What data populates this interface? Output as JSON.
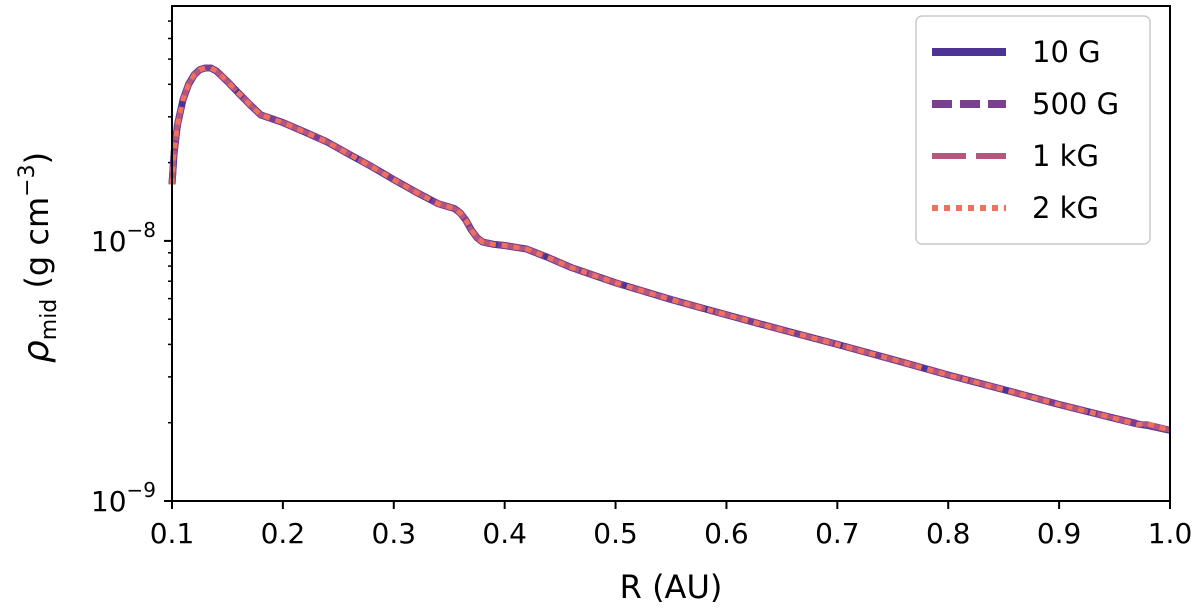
{
  "chart_data": {
    "type": "line",
    "xlabel": "R (AU)",
    "ylabel": {
      "symbol": "ρ",
      "subscript": "mid",
      "units_prefix": " (g cm",
      "units_exp": "−3",
      "units_suffix": ")"
    },
    "xlim": [
      0.1,
      1.0
    ],
    "ylim": [
      1e-09,
      8e-08
    ],
    "yscale": "log",
    "x_ticks": [
      {
        "value": 0.1,
        "label": "0.1"
      },
      {
        "value": 0.2,
        "label": "0.2"
      },
      {
        "value": 0.3,
        "label": "0.3"
      },
      {
        "value": 0.4,
        "label": "0.4"
      },
      {
        "value": 0.5,
        "label": "0.5"
      },
      {
        "value": 0.6,
        "label": "0.6"
      },
      {
        "value": 0.7,
        "label": "0.7"
      },
      {
        "value": 0.8,
        "label": "0.8"
      },
      {
        "value": 0.9,
        "label": "0.9"
      },
      {
        "value": 1.0,
        "label": "1.0"
      }
    ],
    "y_ticks": [
      {
        "value": 1e-09,
        "base": "10",
        "exp": "−9"
      },
      {
        "value": 1e-08,
        "base": "10",
        "exp": "−8"
      }
    ],
    "grid": false,
    "legend_position": "top-right",
    "x": [
      0.1,
      0.102,
      0.105,
      0.11,
      0.115,
      0.12,
      0.125,
      0.13,
      0.135,
      0.14,
      0.15,
      0.16,
      0.17,
      0.18,
      0.19,
      0.2,
      0.22,
      0.24,
      0.26,
      0.28,
      0.3,
      0.32,
      0.34,
      0.355,
      0.36,
      0.365,
      0.37,
      0.375,
      0.38,
      0.39,
      0.4,
      0.42,
      0.44,
      0.46,
      0.5,
      0.55,
      0.6,
      0.65,
      0.7,
      0.75,
      0.8,
      0.85,
      0.9,
      0.95,
      0.97,
      0.98,
      1.0
    ],
    "series": [
      {
        "name": "10 G",
        "color": "#4b3494",
        "style": "solid",
        "values": [
          1.65e-08,
          2.2e-08,
          2.8e-08,
          3.5e-08,
          4e-08,
          4.35e-08,
          4.55e-08,
          4.62e-08,
          4.62e-08,
          4.5e-08,
          4.1e-08,
          3.7e-08,
          3.35e-08,
          3.05e-08,
          2.95e-08,
          2.85e-08,
          2.62e-08,
          2.4e-08,
          2.15e-08,
          1.93e-08,
          1.72e-08,
          1.54e-08,
          1.39e-08,
          1.33e-08,
          1.28e-08,
          1.2e-08,
          1.1e-08,
          1.03e-08,
          9.9e-09,
          9.7e-09,
          9.6e-09,
          9.3e-09,
          8.6e-09,
          7.9e-09,
          6.9e-09,
          5.95e-09,
          5.2e-09,
          4.55e-09,
          4e-09,
          3.5e-09,
          3.05e-09,
          2.68e-09,
          2.35e-09,
          2.08e-09,
          1.98e-09,
          1.95e-09,
          1.87e-09
        ]
      },
      {
        "name": "500 G",
        "color": "#7b3f8f",
        "style": "dashed",
        "values": [
          1.65e-08,
          2.2e-08,
          2.8e-08,
          3.5e-08,
          4e-08,
          4.35e-08,
          4.55e-08,
          4.62e-08,
          4.62e-08,
          4.5e-08,
          4.1e-08,
          3.7e-08,
          3.35e-08,
          3.05e-08,
          2.95e-08,
          2.85e-08,
          2.62e-08,
          2.4e-08,
          2.15e-08,
          1.93e-08,
          1.72e-08,
          1.54e-08,
          1.39e-08,
          1.33e-08,
          1.28e-08,
          1.2e-08,
          1.1e-08,
          1.03e-08,
          9.9e-09,
          9.7e-09,
          9.6e-09,
          9.3e-09,
          8.6e-09,
          7.9e-09,
          6.9e-09,
          5.95e-09,
          5.2e-09,
          4.55e-09,
          4e-09,
          3.5e-09,
          3.05e-09,
          2.68e-09,
          2.35e-09,
          2.08e-09,
          1.99e-09,
          1.96e-09,
          1.87e-09
        ]
      },
      {
        "name": "1 kG",
        "color": "#b5567e",
        "style": "longdash",
        "values": [
          1.65e-08,
          2.2e-08,
          2.8e-08,
          3.5e-08,
          4e-08,
          4.35e-08,
          4.55e-08,
          4.62e-08,
          4.62e-08,
          4.5e-08,
          4.1e-08,
          3.7e-08,
          3.35e-08,
          3.05e-08,
          2.95e-08,
          2.85e-08,
          2.62e-08,
          2.4e-08,
          2.15e-08,
          1.93e-08,
          1.72e-08,
          1.54e-08,
          1.39e-08,
          1.33e-08,
          1.28e-08,
          1.2e-08,
          1.1e-08,
          1.03e-08,
          9.9e-09,
          9.7e-09,
          9.6e-09,
          9.3e-09,
          8.6e-09,
          7.9e-09,
          6.9e-09,
          5.95e-09,
          5.2e-09,
          4.55e-09,
          4e-09,
          3.5e-09,
          3.05e-09,
          2.68e-09,
          2.35e-09,
          2.08e-09,
          1.98e-09,
          1.97e-09,
          1.87e-09
        ]
      },
      {
        "name": "2 kG",
        "color": "#f0705f",
        "style": "dotted",
        "values": [
          1.65e-08,
          2.2e-08,
          2.8e-08,
          3.5e-08,
          4e-08,
          4.35e-08,
          4.55e-08,
          4.62e-08,
          4.62e-08,
          4.5e-08,
          4.1e-08,
          3.7e-08,
          3.35e-08,
          3.05e-08,
          2.95e-08,
          2.85e-08,
          2.62e-08,
          2.4e-08,
          2.15e-08,
          1.93e-08,
          1.72e-08,
          1.54e-08,
          1.39e-08,
          1.33e-08,
          1.28e-08,
          1.2e-08,
          1.1e-08,
          1.03e-08,
          9.9e-09,
          9.7e-09,
          9.6e-09,
          9.3e-09,
          8.6e-09,
          7.9e-09,
          6.9e-09,
          5.95e-09,
          5.2e-09,
          4.55e-09,
          4e-09,
          3.5e-09,
          3.05e-09,
          2.68e-09,
          2.35e-09,
          2.08e-09,
          1.97e-09,
          1.98e-09,
          1.87e-09
        ]
      }
    ]
  }
}
